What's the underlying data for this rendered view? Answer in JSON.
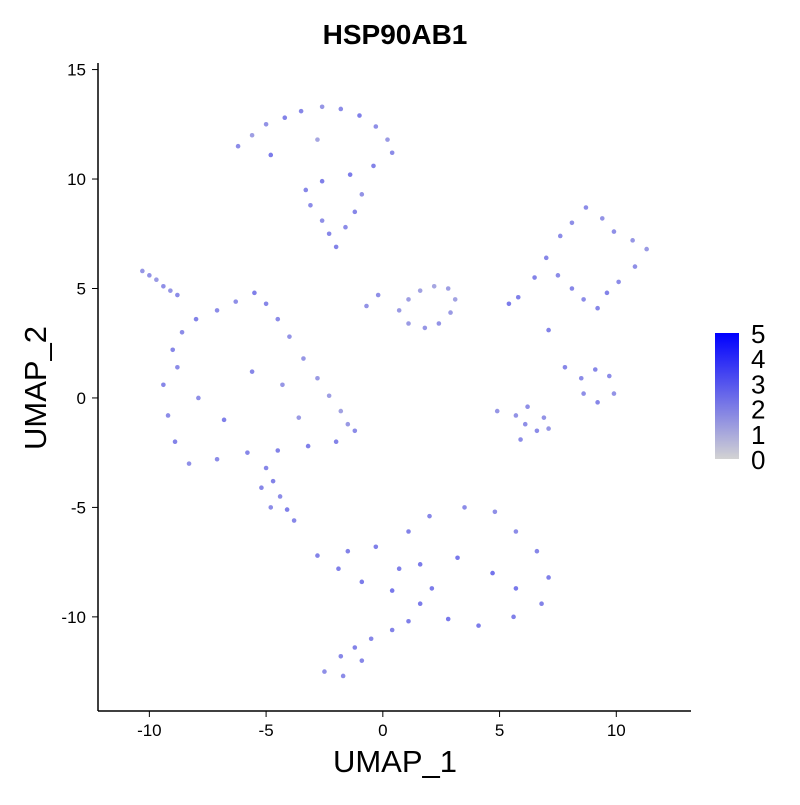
{
  "chart_data": {
    "type": "scatter",
    "title": "HSP90AB1",
    "xlabel": "UMAP_1",
    "ylabel": "UMAP_2",
    "xlim": [
      -12.2,
      13.2
    ],
    "ylim": [
      -14.3,
      15.3
    ],
    "xticks": [
      -10,
      -5,
      0,
      5,
      10
    ],
    "yticks": [
      -10,
      -5,
      0,
      5,
      10,
      15
    ],
    "xtick_labels": [
      "-10",
      "-5",
      "0",
      "5",
      "10"
    ],
    "ytick_labels": [
      "-10",
      "-5",
      "0",
      "5",
      "10",
      "15"
    ],
    "grid": false,
    "legend": {
      "placement": "right",
      "min": 0,
      "max": 5,
      "labels": [
        "5",
        "4",
        "3",
        "2",
        "1",
        "0"
      ],
      "low_color": "#d3d3d3",
      "high_color": "#0000ff"
    },
    "series": [
      {
        "cluster": "top-cap",
        "points": [
          [
            -6.2,
            11.5,
            2.0
          ],
          [
            -5.6,
            12.0,
            1.5
          ],
          [
            -5.0,
            12.5,
            1.8
          ],
          [
            -4.2,
            12.8,
            2.2
          ],
          [
            -3.5,
            13.1,
            2.1
          ],
          [
            -2.6,
            13.3,
            1.7
          ],
          [
            -1.8,
            13.2,
            2.0
          ],
          [
            -1.0,
            12.9,
            2.3
          ],
          [
            -0.3,
            12.4,
            1.9
          ],
          [
            0.2,
            11.8,
            1.6
          ],
          [
            0.4,
            11.2,
            2.0
          ],
          [
            -0.4,
            10.6,
            2.2
          ],
          [
            -1.4,
            10.2,
            2.4
          ],
          [
            -2.6,
            9.9,
            2.3
          ],
          [
            -3.3,
            9.5,
            2.1
          ],
          [
            -3.1,
            8.8,
            2.0
          ],
          [
            -2.6,
            8.1,
            1.9
          ],
          [
            -2.3,
            7.5,
            2.1
          ],
          [
            -2.0,
            6.9,
            2.2
          ],
          [
            -1.6,
            7.8,
            2.0
          ],
          [
            -1.2,
            8.5,
            2.1
          ],
          [
            -0.9,
            9.3,
            1.8
          ],
          [
            -2.8,
            11.8,
            1.3
          ],
          [
            -4.8,
            11.1,
            2.4
          ]
        ]
      },
      {
        "cluster": "left-large",
        "points": [
          [
            -9.0,
            2.2,
            2.1
          ],
          [
            -8.6,
            3.0,
            2.0
          ],
          [
            -8.0,
            3.6,
            2.2
          ],
          [
            -7.1,
            4.0,
            2.0
          ],
          [
            -6.3,
            4.4,
            1.9
          ],
          [
            -5.5,
            4.8,
            2.3
          ],
          [
            -5.0,
            4.3,
            2.1
          ],
          [
            -4.5,
            3.6,
            2.0
          ],
          [
            -4.0,
            2.8,
            1.8
          ],
          [
            -3.4,
            1.8,
            1.7
          ],
          [
            -2.8,
            0.9,
            1.6
          ],
          [
            -2.3,
            0.1,
            1.5
          ],
          [
            -1.8,
            -0.6,
            1.4
          ],
          [
            -1.5,
            -1.2,
            1.6
          ],
          [
            -1.2,
            -1.5,
            2.0
          ],
          [
            -2.0,
            -2.0,
            2.2
          ],
          [
            -3.2,
            -2.2,
            2.3
          ],
          [
            -4.5,
            -2.4,
            2.2
          ],
          [
            -5.8,
            -2.5,
            2.1
          ],
          [
            -7.1,
            -2.8,
            2.0
          ],
          [
            -8.3,
            -3.0,
            1.9
          ],
          [
            -8.9,
            -2.0,
            2.2
          ],
          [
            -9.2,
            -0.8,
            2.0
          ],
          [
            -9.4,
            0.6,
            2.1
          ],
          [
            -8.8,
            1.4,
            2.0
          ],
          [
            -7.9,
            0.0,
            1.9
          ],
          [
            -6.8,
            -1.0,
            2.3
          ],
          [
            -5.6,
            1.2,
            2.1
          ],
          [
            -4.3,
            0.6,
            1.7
          ],
          [
            -3.6,
            -0.9,
            1.6
          ]
        ]
      },
      {
        "cluster": "small-left-spur",
        "points": [
          [
            -10.3,
            5.8,
            1.7
          ],
          [
            -10.0,
            5.6,
            1.8
          ],
          [
            -9.7,
            5.4,
            1.6
          ],
          [
            -9.4,
            5.1,
            1.9
          ],
          [
            -9.1,
            4.9,
            1.7
          ],
          [
            -8.8,
            4.7,
            2.0
          ]
        ]
      },
      {
        "cluster": "lower-left-tail",
        "points": [
          [
            -5.0,
            -3.2,
            2.1
          ],
          [
            -4.7,
            -3.8,
            2.2
          ],
          [
            -4.4,
            -4.5,
            2.0
          ],
          [
            -4.1,
            -5.1,
            2.3
          ],
          [
            -3.8,
            -5.6,
            2.1
          ],
          [
            -4.8,
            -5.0,
            2.0
          ],
          [
            -5.2,
            -4.1,
            2.1
          ]
        ]
      },
      {
        "cluster": "center-small",
        "points": [
          [
            0.7,
            4.0,
            1.6
          ],
          [
            1.1,
            4.5,
            1.5
          ],
          [
            1.6,
            4.9,
            1.4
          ],
          [
            2.2,
            5.1,
            1.3
          ],
          [
            2.8,
            5.0,
            1.5
          ],
          [
            3.1,
            4.5,
            1.4
          ],
          [
            2.9,
            3.9,
            1.6
          ],
          [
            2.4,
            3.4,
            1.8
          ],
          [
            1.8,
            3.2,
            1.7
          ],
          [
            1.1,
            3.4,
            1.6
          ],
          [
            -0.7,
            4.2,
            1.8
          ],
          [
            -0.2,
            4.7,
            1.9
          ]
        ]
      },
      {
        "cluster": "right-cluster",
        "points": [
          [
            6.5,
            5.5,
            2.2
          ],
          [
            7.0,
            6.4,
            2.1
          ],
          [
            7.6,
            7.4,
            2.0
          ],
          [
            8.1,
            8.0,
            1.9
          ],
          [
            8.7,
            8.7,
            2.0
          ],
          [
            9.4,
            8.2,
            1.8
          ],
          [
            9.9,
            7.6,
            1.9
          ],
          [
            10.7,
            7.2,
            1.7
          ],
          [
            11.3,
            6.8,
            1.6
          ],
          [
            10.8,
            6.0,
            1.9
          ],
          [
            10.1,
            5.3,
            2.0
          ],
          [
            9.6,
            4.8,
            2.2
          ],
          [
            9.2,
            4.1,
            2.1
          ],
          [
            8.6,
            4.5,
            2.0
          ],
          [
            8.1,
            5.0,
            2.1
          ],
          [
            7.5,
            5.6,
            2.0
          ],
          [
            5.8,
            4.6,
            2.3
          ],
          [
            5.4,
            4.3,
            2.4
          ],
          [
            7.1,
            3.1,
            2.2
          ],
          [
            7.8,
            1.4,
            2.1
          ],
          [
            8.5,
            0.9,
            2.0
          ],
          [
            9.1,
            1.3,
            2.1
          ],
          [
            9.7,
            1.0,
            2.0
          ],
          [
            9.9,
            0.2,
            1.8
          ],
          [
            9.2,
            -0.2,
            2.1
          ],
          [
            8.6,
            0.2,
            1.9
          ]
        ]
      },
      {
        "cluster": "right-lower-small",
        "points": [
          [
            5.7,
            -0.8,
            1.8
          ],
          [
            6.1,
            -1.2,
            1.9
          ],
          [
            6.6,
            -1.5,
            2.0
          ],
          [
            7.1,
            -1.4,
            1.7
          ],
          [
            6.9,
            -0.9,
            1.8
          ],
          [
            6.2,
            -0.4,
            1.9
          ],
          [
            5.9,
            -1.9,
            2.0
          ],
          [
            4.9,
            -0.6,
            1.7
          ]
        ]
      },
      {
        "cluster": "bottom-large",
        "points": [
          [
            -2.8,
            -7.2,
            2.2
          ],
          [
            -1.9,
            -7.8,
            2.3
          ],
          [
            -0.9,
            -8.4,
            2.4
          ],
          [
            0.4,
            -8.8,
            2.5
          ],
          [
            1.6,
            -9.4,
            2.4
          ],
          [
            2.8,
            -10.1,
            2.5
          ],
          [
            4.1,
            -10.4,
            2.4
          ],
          [
            5.6,
            -10.0,
            2.3
          ],
          [
            6.8,
            -9.4,
            2.2
          ],
          [
            7.1,
            -8.2,
            2.3
          ],
          [
            6.6,
            -7.0,
            2.1
          ],
          [
            5.7,
            -6.1,
            2.0
          ],
          [
            4.8,
            -5.2,
            1.9
          ],
          [
            3.5,
            -5.0,
            2.0
          ],
          [
            2.0,
            -5.4,
            2.1
          ],
          [
            1.1,
            -6.1,
            2.2
          ],
          [
            -0.3,
            -6.8,
            2.3
          ],
          [
            -1.5,
            -7.0,
            2.2
          ],
          [
            1.6,
            -7.6,
            2.4
          ],
          [
            3.2,
            -7.3,
            2.5
          ],
          [
            4.7,
            -8.0,
            2.6
          ],
          [
            5.7,
            -8.7,
            2.5
          ],
          [
            2.1,
            -8.7,
            2.4
          ],
          [
            0.7,
            -7.8,
            2.3
          ],
          [
            -1.8,
            -11.8,
            2.1
          ],
          [
            -1.2,
            -11.4,
            2.2
          ],
          [
            -0.5,
            -11.0,
            2.1
          ],
          [
            0.4,
            -10.6,
            2.2
          ],
          [
            1.1,
            -10.2,
            2.3
          ],
          [
            -2.5,
            -12.5,
            1.9
          ],
          [
            -1.7,
            -12.7,
            2.0
          ],
          [
            -0.9,
            -12.0,
            2.1
          ]
        ]
      }
    ]
  }
}
